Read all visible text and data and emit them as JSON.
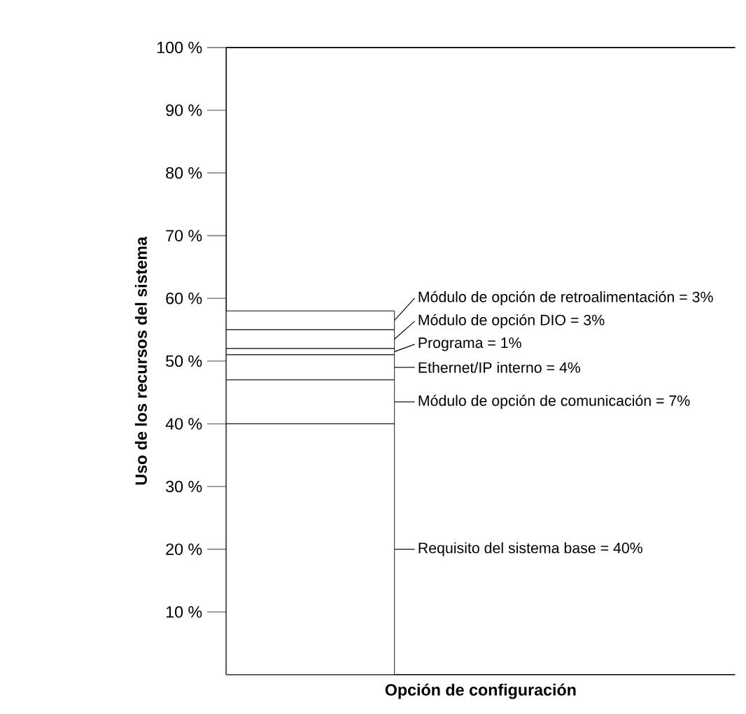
{
  "chart_data": {
    "type": "bar",
    "stacked": true,
    "xlabel": "Opción de configuración",
    "ylabel": "Uso de los recursos del sistema",
    "categories": [
      null
    ],
    "tick_labels": "y",
    "ylim": [
      0,
      100
    ],
    "yticks": [
      {
        "value": 10,
        "label": "10 %"
      },
      {
        "value": 20,
        "label": "20 %"
      },
      {
        "value": 30,
        "label": "30 %"
      },
      {
        "value": 40,
        "label": "40 %"
      },
      {
        "value": 50,
        "label": "50 %"
      },
      {
        "value": 60,
        "label": "60 %"
      },
      {
        "value": 70,
        "label": "70 %"
      },
      {
        "value": 80,
        "label": "80 %"
      },
      {
        "value": 90,
        "label": "90 %"
      },
      {
        "value": 100,
        "label": "100 %"
      }
    ],
    "series": [
      {
        "color": "#ffffff",
        "values": [
          40
        ],
        "value_labels": [
          "Requisito del sistema base = 40%"
        ]
      },
      {
        "color": "#ffffff",
        "values": [
          7
        ],
        "value_labels": [
          "Módulo de opción de comunicación = 7%"
        ]
      },
      {
        "color": "#ffffff",
        "values": [
          4
        ],
        "value_labels": [
          "Ethernet/IP interno = 4%"
        ]
      },
      {
        "color": "#ffffff",
        "values": [
          1
        ],
        "value_labels": [
          "Programa = 1%"
        ]
      },
      {
        "color": "#ffffff",
        "values": [
          3
        ],
        "value_labels": [
          "Módulo de opción DIO = 3%"
        ]
      },
      {
        "color": "#ffffff",
        "values": [
          3
        ],
        "value_labels": [
          "Módulo de opción de retroalimentación = 3%"
        ]
      }
    ]
  }
}
